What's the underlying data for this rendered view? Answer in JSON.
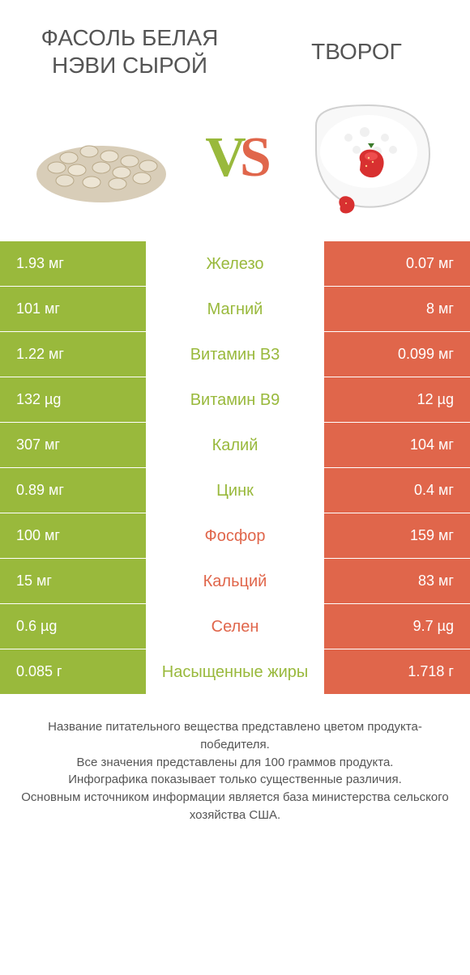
{
  "colors": {
    "green": "#99b93c",
    "orange": "#e0664b",
    "bg": "#ffffff",
    "title_text": "#555555",
    "cell_text": "#ffffff",
    "footer_text": "#555555"
  },
  "typography": {
    "title_fontsize": 28,
    "vs_fontsize": 70,
    "cell_fontsize": 18,
    "nutrient_fontsize": 20,
    "footer_fontsize": 15
  },
  "header": {
    "left_title": "ФАСОЛЬ БЕЛАЯ НЭВИ СЫРОЙ",
    "right_title": "ТВОРОГ",
    "vs_v": "V",
    "vs_s": "S"
  },
  "table": {
    "rows": [
      {
        "left": "1.93 мг",
        "name": "Железо",
        "right": "0.07 мг",
        "winner": "left"
      },
      {
        "left": "101 мг",
        "name": "Магний",
        "right": "8 мг",
        "winner": "left"
      },
      {
        "left": "1.22 мг",
        "name": "Витамин B3",
        "right": "0.099 мг",
        "winner": "left"
      },
      {
        "left": "132 µg",
        "name": "Витамин B9",
        "right": "12 µg",
        "winner": "left"
      },
      {
        "left": "307 мг",
        "name": "Калий",
        "right": "104 мг",
        "winner": "left"
      },
      {
        "left": "0.89 мг",
        "name": "Цинк",
        "right": "0.4 мг",
        "winner": "left"
      },
      {
        "left": "100 мг",
        "name": "Фосфор",
        "right": "159 мг",
        "winner": "right"
      },
      {
        "left": "15 мг",
        "name": "Кальций",
        "right": "83 мг",
        "winner": "right"
      },
      {
        "left": "0.6 µg",
        "name": "Селен",
        "right": "9.7 µg",
        "winner": "right"
      },
      {
        "left": "0.085 г",
        "name": "Насыщенные жиры",
        "right": "1.718 г",
        "winner": "left"
      }
    ]
  },
  "footer": {
    "line1": "Название питательного вещества представлено цветом продукта-победителя.",
    "line2": "Все значения представлены для 100 граммов продукта.",
    "line3": "Инфографика показывает только существенные различия.",
    "line4": "Основным источником информации является база министерства сельского хозяйства США."
  }
}
